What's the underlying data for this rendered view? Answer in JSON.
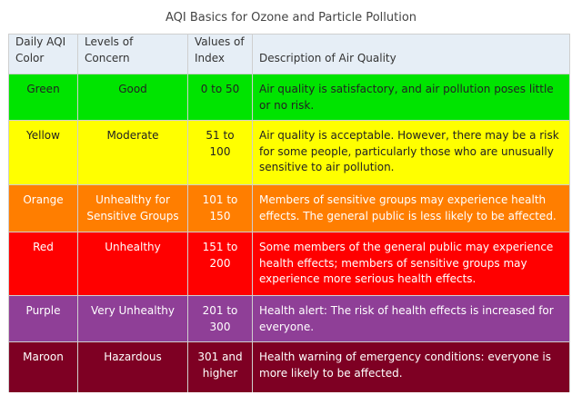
{
  "caption": "AQI Basics for Ozone and Particle Pollution",
  "headers": {
    "color": "Daily AQI Color",
    "concern": "Levels of Concern",
    "values": "Values of Index",
    "description": "Description of Air Quality"
  },
  "rows": [
    {
      "color": "Green",
      "concern": "Good",
      "values": "0 to 50",
      "description": "Air quality is satisfactory, and air pollution poses little or no risk.",
      "bg": "#00e400"
    },
    {
      "color": "Yellow",
      "concern": "Moderate",
      "values": "51 to 100",
      "description": "Air quality is acceptable. However, there may be a risk for some people, particularly those who are unusually sensitive to air pollution.",
      "bg": "#ffff00"
    },
    {
      "color": "Orange",
      "concern": "Unhealthy for Sensitive Groups",
      "values": "101 to 150",
      "description": "Members of sensitive groups may experience health effects. The general public is less likely to be affected.",
      "bg": "#ff7e00"
    },
    {
      "color": "Red",
      "concern": "Unhealthy",
      "values": "151 to 200",
      "description": "Some members of the general public may experience health effects; members of sensitive groups may experience more serious health effects.",
      "bg": "#ff0000"
    },
    {
      "color": "Purple",
      "concern": "Very Unhealthy",
      "values": "201 to 300",
      "description": "Health alert: The risk of health effects is increased for everyone.",
      "bg": "#8f3f97"
    },
    {
      "color": "Maroon",
      "concern": "Hazardous",
      "values": "301 and higher",
      "description": "Health warning of emergency conditions: everyone is more likely to be affected.",
      "bg": "#7e0023"
    }
  ]
}
